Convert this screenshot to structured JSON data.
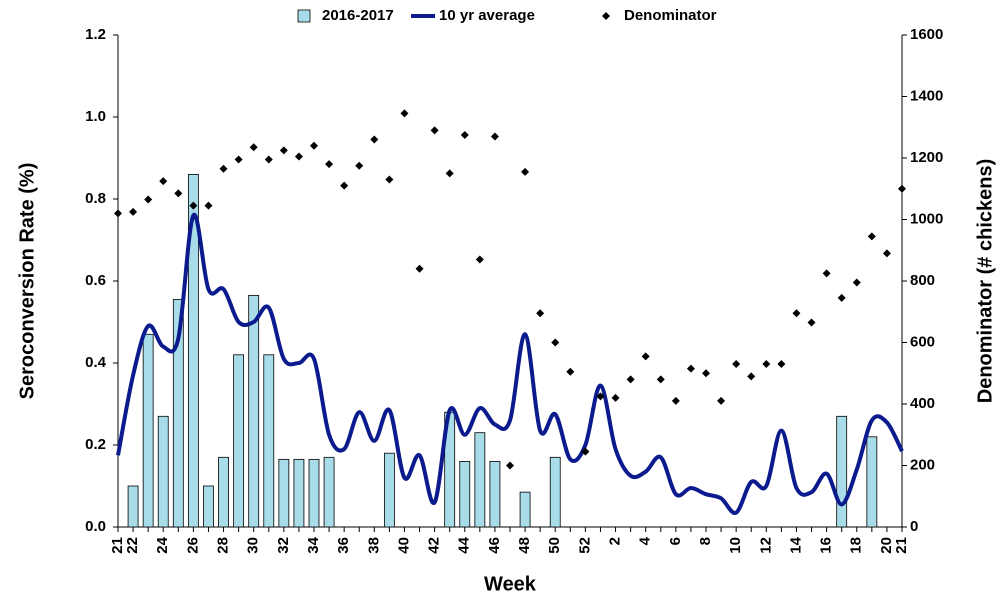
{
  "chart_data": {
    "type": "combo",
    "xlabel": "Week",
    "ylabel": "Seroconversion Rate (%)",
    "y2label": "Denominator (# chickens)",
    "categories": [
      "21",
      "22",
      null,
      "24",
      null,
      "26",
      null,
      "28",
      null,
      "30",
      null,
      "32",
      null,
      "34",
      null,
      "36",
      null,
      "38",
      null,
      "40",
      null,
      "42",
      null,
      "44",
      null,
      "46",
      null,
      "48",
      null,
      "50",
      null,
      "52",
      null,
      "2",
      null,
      "4",
      null,
      "6",
      null,
      "8",
      null,
      "10",
      null,
      "12",
      null,
      "14",
      null,
      "16",
      null,
      "18",
      null,
      "20",
      "21"
    ],
    "series": [
      {
        "name": "2016-2017",
        "type": "bar",
        "color": "#a9dce9",
        "values": [
          0,
          0.1,
          0.47,
          0.27,
          0.555,
          0.86,
          0.1,
          0.17,
          0.42,
          0.565,
          0.42,
          0.165,
          0.165,
          0.165,
          0.17,
          0,
          0,
          0,
          0.18,
          0,
          0,
          0,
          0.28,
          0.16,
          0.23,
          0.16,
          0,
          0.085,
          0,
          0.17,
          0,
          0,
          0,
          0,
          0,
          0,
          0,
          0,
          0,
          0,
          0,
          0,
          0,
          0,
          0,
          0,
          0,
          0,
          0.27,
          0,
          0.22,
          0,
          0
        ]
      },
      {
        "name": "10 yr average",
        "type": "line",
        "color": "#0b1a8c",
        "values": [
          0.175,
          0.37,
          0.49,
          0.44,
          0.46,
          0.76,
          0.58,
          0.58,
          0.5,
          0.5,
          0.535,
          0.41,
          0.4,
          0.41,
          0.225,
          0.19,
          0.28,
          0.21,
          0.285,
          0.12,
          0.175,
          0.06,
          0.285,
          0.225,
          0.29,
          0.25,
          0.26,
          0.47,
          0.235,
          0.275,
          0.165,
          0.2,
          0.345,
          0.19,
          0.125,
          0.135,
          0.17,
          0.08,
          0.095,
          0.08,
          0.07,
          0.035,
          0.11,
          0.1,
          0.235,
          0.095,
          0.085,
          0.13,
          0.055,
          0.14,
          0.26,
          0.255,
          0.185
        ]
      },
      {
        "name": "Denominator",
        "type": "scatter",
        "axis": "y2",
        "color": "#000000",
        "values": [
          1020,
          1025,
          1065,
          1125,
          1085,
          1045,
          1045,
          1165,
          1195,
          1235,
          1195,
          1225,
          1205,
          1240,
          1180,
          1110,
          1175,
          1260,
          1130,
          1345,
          840,
          1290,
          1150,
          1275,
          870,
          1270,
          200,
          1155,
          695,
          600,
          505,
          245,
          425,
          420,
          480,
          555,
          480,
          410,
          515,
          500,
          410,
          530,
          490,
          530,
          530,
          695,
          665,
          825,
          745,
          795,
          945,
          890,
          1100
        ]
      }
    ],
    "ylim": [
      0,
      1.2
    ],
    "yticks": [
      {
        "value": 0,
        "label": "0.0"
      },
      {
        "value": 0.2,
        "label": "0.2"
      },
      {
        "value": 0.4,
        "label": "0.4"
      },
      {
        "value": 0.6,
        "label": "0.6"
      },
      {
        "value": 0.8,
        "label": "0.8"
      },
      {
        "value": 1,
        "label": "1.0"
      },
      {
        "value": 1.2,
        "label": "1.2"
      }
    ],
    "y2lim": [
      0,
      1600
    ],
    "y2ticks": [
      0,
      200,
      400,
      600,
      800,
      1000,
      1200,
      1400,
      1600
    ],
    "grid": false,
    "legend": "top"
  }
}
